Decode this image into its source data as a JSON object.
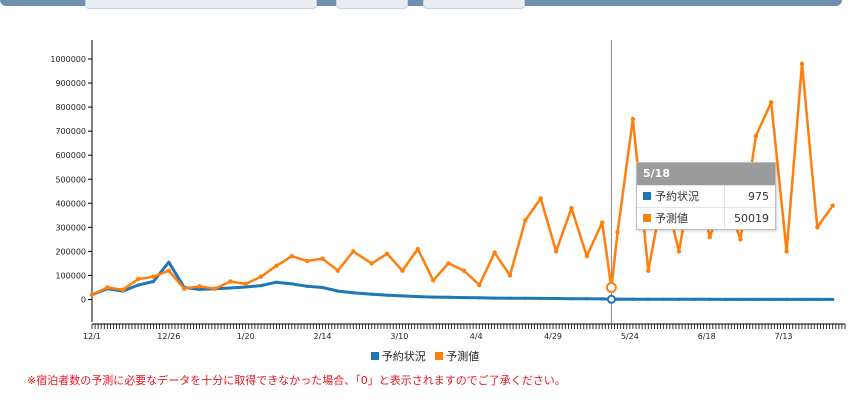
{
  "colors": {
    "booking": "#1f77b4",
    "forecast": "#ff7f0e",
    "note": "#e8181f",
    "tooltip_header": "#9b9b9b"
  },
  "legend": {
    "items": [
      {
        "label": "予約状況"
      },
      {
        "label": "予測値"
      }
    ],
    "placement": "bottom-center"
  },
  "note": "※宿泊者数の予測に必要なデータを十分に取得できなかった場合、「0」と表示されますのでご了承ください。",
  "tooltip": {
    "date": "5/18",
    "rows": [
      {
        "label": "予約状況",
        "value": "975"
      },
      {
        "label": "予測値",
        "value": "50019"
      }
    ]
  },
  "chart_data": {
    "type": "line",
    "x_tick_labels": [
      "12/1",
      "12/26",
      "1/20",
      "2/14",
      "3/10",
      "4/4",
      "4/29",
      "5/24",
      "6/18",
      "7/13"
    ],
    "y_tick_labels": [
      "0",
      "100000",
      "200000",
      "300000",
      "400000",
      "500000",
      "600000",
      "700000",
      "800000",
      "900000",
      "1000000"
    ],
    "ylim": [
      -100000,
      1100000
    ],
    "grid": false,
    "hover_date": "5/18",
    "x": [
      "12/1",
      "12/6",
      "12/11",
      "12/16",
      "12/21",
      "12/26",
      "12/31",
      "1/5",
      "1/10",
      "1/15",
      "1/20",
      "1/25",
      "1/30",
      "2/4",
      "2/9",
      "2/14",
      "2/19",
      "2/24",
      "3/1",
      "3/6",
      "3/11",
      "3/16",
      "3/21",
      "3/26",
      "3/31",
      "4/5",
      "4/10",
      "4/15",
      "4/20",
      "4/25",
      "4/30",
      "5/5",
      "5/10",
      "5/15",
      "5/18",
      "5/20",
      "5/25",
      "5/30",
      "6/4",
      "6/9",
      "6/14",
      "6/19",
      "6/24",
      "6/29",
      "7/4",
      "7/9",
      "7/14",
      "7/19",
      "7/24",
      "7/29"
    ],
    "series": [
      {
        "name": "予約状況",
        "values": [
          20000,
          45000,
          35000,
          60000,
          75000,
          155000,
          50000,
          42000,
          45000,
          48000,
          52000,
          58000,
          72000,
          65000,
          55000,
          50000,
          35000,
          28000,
          22000,
          18000,
          15000,
          12000,
          10000,
          9000,
          8000,
          7000,
          6000,
          5500,
          5000,
          4500,
          4000,
          3500,
          3000,
          2500,
          975,
          1500,
          1200,
          1000,
          900,
          800,
          700,
          700,
          600,
          600,
          500,
          500,
          500,
          400,
          400,
          300
        ]
      },
      {
        "name": "予測値",
        "values": [
          20000,
          50000,
          40000,
          85000,
          95000,
          120000,
          45000,
          55000,
          45000,
          75000,
          65000,
          95000,
          140000,
          180000,
          160000,
          170000,
          120000,
          200000,
          150000,
          190000,
          120000,
          210000,
          80000,
          150000,
          120000,
          60000,
          195000,
          100000,
          330000,
          420000,
          200000,
          380000,
          180000,
          320000,
          50019,
          280000,
          750000,
          120000,
          460000,
          200000,
          560000,
          260000,
          430000,
          250000,
          680000,
          820000,
          200000,
          980000,
          300000,
          390000
        ]
      }
    ]
  }
}
